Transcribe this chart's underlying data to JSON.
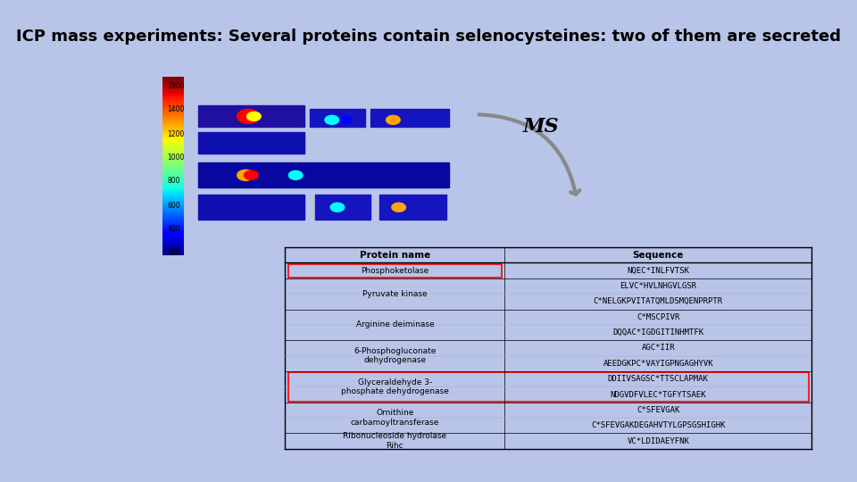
{
  "title": "ICP mass experiments: Several proteins contain selenocysteines: two of them are secreted",
  "title_bg": "#dce9f5",
  "title_fontsize": 13,
  "slide_bg": "#b8c4e8",
  "panel_bg": "#ffffff",
  "panel_border": "#cc0000",
  "ms_label": "MS",
  "table_headers": [
    "Protein name",
    "Sequence"
  ],
  "table_data": [
    [
      "Phosphoketolase",
      "NQEC*INLFVTSK",
      true,
      false
    ],
    [
      "Pyruvate kinase",
      "ELVC*HVLNHGVLGSR",
      false,
      false
    ],
    [
      "Pyruvate kinase",
      "C*NELGKPVITATQMLDSMQENPRPTR",
      false,
      false
    ],
    [
      "Arginine deiminase",
      "C*MSCPIVR",
      false,
      false
    ],
    [
      "Arginine deiminase",
      "DQQAC*IGDGITINHMTFK",
      false,
      false
    ],
    [
      "6-Phosphogluconate\ndehydrogenase",
      "AGC*IIR",
      false,
      false
    ],
    [
      "6-Phosphogluconate\ndehydrogenase",
      "AEEDGKPC*VAYIGPNGAGHYVK",
      false,
      false
    ],
    [
      "Glyceraldehyde 3-\nphosphate dehydrogenase",
      "DDIIVSAGSC*TTSCLAPMAK",
      false,
      true
    ],
    [
      "Glyceraldehyde 3-\nphosphate dehydrogenase",
      "NDGVDFVLEC*TGFYTSAEK",
      false,
      true
    ],
    [
      "Ornithine\ncarbamoyltransferase",
      "C*SFEVGAK",
      false,
      false
    ],
    [
      "Ornithine\ncarbamoyltransferase",
      "C*SFEVGAKDEGAHVTYLGPSGSHIGHK",
      false,
      false
    ],
    [
      "Ribonucleoside hydrolase\nRihc",
      "VC*LDIDAEYFNK",
      false,
      false
    ]
  ],
  "boxed_proteins": [
    "Phosphoketolase",
    "Glyceraldehyde 3-\nphosphate dehydrogenase"
  ]
}
